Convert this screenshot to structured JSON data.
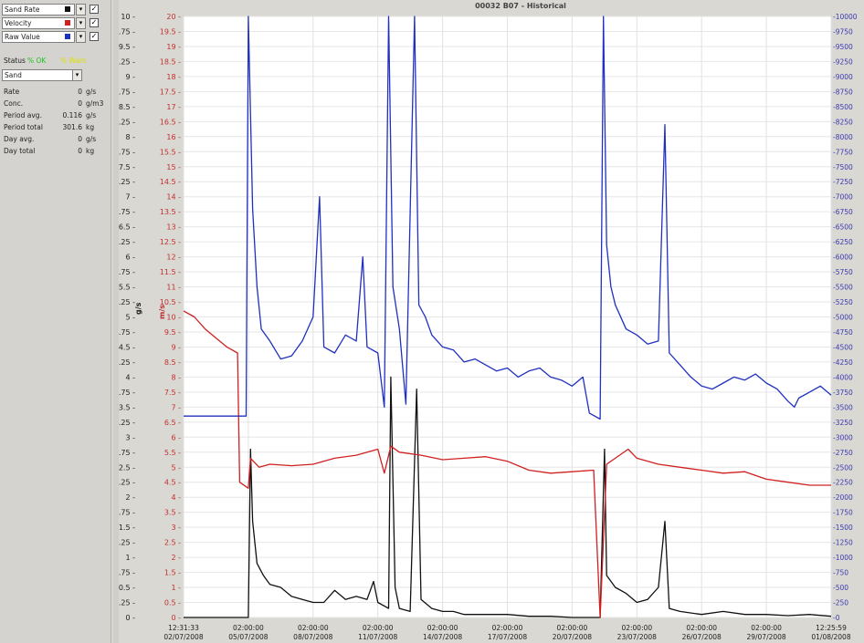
{
  "window": {
    "title": "00032 B07 - Historical"
  },
  "sidebar": {
    "series": [
      {
        "label": "Sand Rate",
        "color": "#111111",
        "checked": true
      },
      {
        "label": "Velocity",
        "color": "#d02020",
        "checked": true
      },
      {
        "label": "Raw Value",
        "color": "#2030c0",
        "checked": true
      }
    ],
    "status_label": "Status",
    "status_ok": "% OK",
    "status_warn": "% Warn",
    "mode_select": "Sand",
    "stats": [
      {
        "label": "Rate",
        "value": "0",
        "unit": "g/s"
      },
      {
        "label": "Conc.",
        "value": "0",
        "unit": "g/m3"
      },
      {
        "label": "Period avg.",
        "value": "0.116",
        "unit": "g/s"
      },
      {
        "label": "Period total",
        "value": "301.6",
        "unit": "kg"
      },
      {
        "label": "Day avg.",
        "value": "0",
        "unit": "g/s"
      },
      {
        "label": "Day total",
        "value": "0",
        "unit": "kg"
      }
    ]
  },
  "chart_data": {
    "type": "line",
    "title": "00032 B07 - Historical",
    "left_axis": {
      "label": "g/s",
      "min": 0,
      "max": 10,
      "step": 0.25,
      "color": "#222222"
    },
    "mid_axis": {
      "label": "m/s",
      "min": 0,
      "max": 20,
      "step": 0.5,
      "color": "#c03030"
    },
    "right_axis": {
      "label": "",
      "min": 0,
      "max": 10000,
      "step": 250,
      "color": "#3a3ab0"
    },
    "x_ticks": [
      {
        "time": "12:31:33",
        "date": "02/07/2008"
      },
      {
        "time": "02:00:00",
        "date": "05/07/2008"
      },
      {
        "time": "02:00:00",
        "date": "08/07/2008"
      },
      {
        "time": "02:00:00",
        "date": "11/07/2008"
      },
      {
        "time": "02:00:00",
        "date": "14/07/2008"
      },
      {
        "time": "02:00:00",
        "date": "17/07/2008"
      },
      {
        "time": "02:00:00",
        "date": "20/07/2008"
      },
      {
        "time": "02:00:00",
        "date": "23/07/2008"
      },
      {
        "time": "02:00:00",
        "date": "26/07/2008"
      },
      {
        "time": "02:00:00",
        "date": "29/07/2008"
      },
      {
        "time": "12:25:59",
        "date": "01/08/2008"
      }
    ],
    "x_range_days": [
      0,
      30
    ],
    "grid": true,
    "series": [
      {
        "name": "Sand Rate",
        "axis": "left",
        "color": "#111111",
        "points": [
          [
            0,
            0
          ],
          [
            2.5,
            0
          ],
          [
            3,
            0
          ],
          [
            3.1,
            2.8
          ],
          [
            3.2,
            1.6
          ],
          [
            3.4,
            0.9
          ],
          [
            3.7,
            0.7
          ],
          [
            4,
            0.55
          ],
          [
            4.5,
            0.5
          ],
          [
            5,
            0.35
          ],
          [
            5.5,
            0.3
          ],
          [
            6,
            0.25
          ],
          [
            6.5,
            0.25
          ],
          [
            7,
            0.45
          ],
          [
            7.5,
            0.3
          ],
          [
            8,
            0.35
          ],
          [
            8.5,
            0.3
          ],
          [
            8.8,
            0.6
          ],
          [
            9,
            0.25
          ],
          [
            9.5,
            0.15
          ],
          [
            9.6,
            4.0
          ],
          [
            9.8,
            0.5
          ],
          [
            10,
            0.15
          ],
          [
            10.5,
            0.1
          ],
          [
            10.8,
            3.8
          ],
          [
            11,
            0.3
          ],
          [
            11.5,
            0.15
          ],
          [
            12,
            0.1
          ],
          [
            12.5,
            0.1
          ],
          [
            13,
            0.05
          ],
          [
            14,
            0.05
          ],
          [
            15,
            0.05
          ],
          [
            16,
            0.02
          ],
          [
            17,
            0.02
          ],
          [
            18,
            0.0
          ],
          [
            19.3,
            0.0
          ],
          [
            19.5,
            2.8
          ],
          [
            19.6,
            0.7
          ],
          [
            20,
            0.5
          ],
          [
            20.5,
            0.4
          ],
          [
            21,
            0.25
          ],
          [
            21.5,
            0.3
          ],
          [
            22,
            0.5
          ],
          [
            22.3,
            1.6
          ],
          [
            22.5,
            0.15
          ],
          [
            23,
            0.1
          ],
          [
            24,
            0.05
          ],
          [
            25,
            0.1
          ],
          [
            26,
            0.05
          ],
          [
            27,
            0.05
          ],
          [
            28,
            0.03
          ],
          [
            29,
            0.05
          ],
          [
            30,
            0.02
          ]
        ]
      },
      {
        "name": "Velocity",
        "axis": "mid",
        "color": "#d02020",
        "points": [
          [
            0,
            10.2
          ],
          [
            0.5,
            10.0
          ],
          [
            1,
            9.6
          ],
          [
            1.5,
            9.3
          ],
          [
            2,
            9.0
          ],
          [
            2.5,
            8.8
          ],
          [
            2.6,
            4.5
          ],
          [
            3,
            4.3
          ],
          [
            3.1,
            5.3
          ],
          [
            3.5,
            5.0
          ],
          [
            4,
            5.1
          ],
          [
            5,
            5.05
          ],
          [
            6,
            5.1
          ],
          [
            7,
            5.3
          ],
          [
            8,
            5.4
          ],
          [
            9,
            5.6
          ],
          [
            9.3,
            4.8
          ],
          [
            9.6,
            5.7
          ],
          [
            10,
            5.5
          ],
          [
            11,
            5.4
          ],
          [
            12,
            5.25
          ],
          [
            13,
            5.3
          ],
          [
            14,
            5.35
          ],
          [
            15,
            5.2
          ],
          [
            16,
            4.9
          ],
          [
            17,
            4.8
          ],
          [
            18,
            4.85
          ],
          [
            19,
            4.9
          ],
          [
            19.3,
            0.0
          ],
          [
            19.6,
            5.1
          ],
          [
            20,
            5.3
          ],
          [
            20.6,
            5.6
          ],
          [
            21,
            5.3
          ],
          [
            22,
            5.1
          ],
          [
            23,
            5.0
          ],
          [
            24,
            4.9
          ],
          [
            25,
            4.8
          ],
          [
            26,
            4.85
          ],
          [
            27,
            4.6
          ],
          [
            28,
            4.5
          ],
          [
            29,
            4.4
          ],
          [
            30,
            4.4
          ]
        ]
      },
      {
        "name": "Raw Value",
        "axis": "right",
        "color": "#2030c0",
        "points": [
          [
            0,
            3350
          ],
          [
            2.5,
            3350
          ],
          [
            2.9,
            3350
          ],
          [
            3.0,
            10000
          ],
          [
            3.2,
            6800
          ],
          [
            3.4,
            5500
          ],
          [
            3.6,
            4800
          ],
          [
            4,
            4600
          ],
          [
            4.5,
            4300
          ],
          [
            5,
            4350
          ],
          [
            5.5,
            4600
          ],
          [
            6,
            5000
          ],
          [
            6.3,
            7000
          ],
          [
            6.5,
            4500
          ],
          [
            7,
            4400
          ],
          [
            7.5,
            4700
          ],
          [
            8,
            4600
          ],
          [
            8.3,
            6000
          ],
          [
            8.5,
            4500
          ],
          [
            9,
            4400
          ],
          [
            9.3,
            3500
          ],
          [
            9.5,
            10000
          ],
          [
            9.7,
            5500
          ],
          [
            10,
            4800
          ],
          [
            10.3,
            3550
          ],
          [
            10.7,
            10000
          ],
          [
            10.9,
            5200
          ],
          [
            11.2,
            5000
          ],
          [
            11.5,
            4700
          ],
          [
            12,
            4500
          ],
          [
            12.5,
            4450
          ],
          [
            13,
            4250
          ],
          [
            13.5,
            4300
          ],
          [
            14,
            4200
          ],
          [
            14.5,
            4100
          ],
          [
            15,
            4150
          ],
          [
            15.5,
            4000
          ],
          [
            16,
            4100
          ],
          [
            16.5,
            4150
          ],
          [
            17,
            4000
          ],
          [
            17.5,
            3950
          ],
          [
            18,
            3850
          ],
          [
            18.5,
            4000
          ],
          [
            18.8,
            3400
          ],
          [
            19.3,
            3300
          ],
          [
            19.45,
            10000
          ],
          [
            19.6,
            6200
          ],
          [
            19.8,
            5500
          ],
          [
            20,
            5200
          ],
          [
            20.5,
            4800
          ],
          [
            21,
            4700
          ],
          [
            21.5,
            4550
          ],
          [
            22,
            4600
          ],
          [
            22.3,
            8200
          ],
          [
            22.5,
            4400
          ],
          [
            23,
            4200
          ],
          [
            23.5,
            4000
          ],
          [
            24,
            3850
          ],
          [
            24.5,
            3800
          ],
          [
            25,
            3900
          ],
          [
            25.5,
            4000
          ],
          [
            26,
            3950
          ],
          [
            26.5,
            4050
          ],
          [
            27,
            3900
          ],
          [
            27.5,
            3800
          ],
          [
            28,
            3600
          ],
          [
            28.3,
            3500
          ],
          [
            28.5,
            3650
          ],
          [
            29,
            3750
          ],
          [
            29.5,
            3850
          ],
          [
            30,
            3700
          ]
        ]
      }
    ]
  }
}
